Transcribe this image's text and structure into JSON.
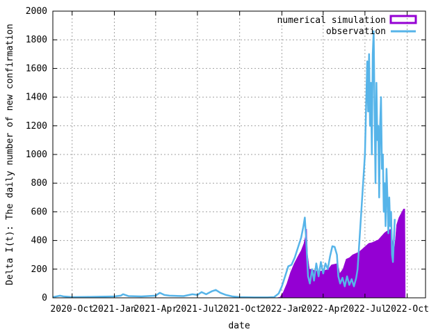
{
  "chart_data": {
    "type": "area",
    "title": "",
    "xlabel": "date",
    "ylabel": "Delta I(t): The daily number of new confirmation",
    "ylim": [
      0,
      2000
    ],
    "xlim": [
      "2020-08-20",
      "2022-11-10"
    ],
    "yticks": [
      0,
      200,
      400,
      600,
      800,
      1000,
      1200,
      1400,
      1600,
      1800,
      2000
    ],
    "xticks": [
      {
        "date": "2020-10-01",
        "label": "2020-Oct"
      },
      {
        "date": "2021-01-01",
        "label": "2021-Jan"
      },
      {
        "date": "2021-04-01",
        "label": "2021-Apr"
      },
      {
        "date": "2021-07-01",
        "label": "2021-Jul"
      },
      {
        "date": "2021-10-01",
        "label": "2021-Oct"
      },
      {
        "date": "2022-01-01",
        "label": "2022-Jan"
      },
      {
        "date": "2022-04-01",
        "label": "2022-Apr"
      },
      {
        "date": "2022-07-01",
        "label": "2022-Jul"
      },
      {
        "date": "2022-10-01",
        "label": "2022-Oct"
      }
    ],
    "grid": true,
    "legend_position": "top-right",
    "series": [
      {
        "name": "numerical simulation",
        "style": "filled bars",
        "color": "#9400d3",
        "points": [
          [
            "2020-08-20",
            0
          ],
          [
            "2021-12-20",
            0
          ],
          [
            "2021-12-28",
            5
          ],
          [
            "2022-01-04",
            40
          ],
          [
            "2022-01-12",
            100
          ],
          [
            "2022-01-20",
            180
          ],
          [
            "2022-01-28",
            240
          ],
          [
            "2022-02-05",
            290
          ],
          [
            "2022-02-12",
            330
          ],
          [
            "2022-02-18",
            380
          ],
          [
            "2022-02-22",
            440
          ],
          [
            "2022-02-24",
            480
          ],
          [
            "2022-02-26",
            300
          ],
          [
            "2022-03-02",
            200
          ],
          [
            "2022-03-08",
            195
          ],
          [
            "2022-03-15",
            190
          ],
          [
            "2022-03-22",
            185
          ],
          [
            "2022-03-29",
            188
          ],
          [
            "2022-04-05",
            192
          ],
          [
            "2022-04-12",
            200
          ],
          [
            "2022-04-19",
            230
          ],
          [
            "2022-04-26",
            235
          ],
          [
            "2022-05-03",
            240
          ],
          [
            "2022-05-07",
            170
          ],
          [
            "2022-05-14",
            200
          ],
          [
            "2022-05-21",
            270
          ],
          [
            "2022-05-28",
            280
          ],
          [
            "2022-06-04",
            300
          ],
          [
            "2022-06-11",
            310
          ],
          [
            "2022-06-18",
            320
          ],
          [
            "2022-06-25",
            340
          ],
          [
            "2022-07-02",
            360
          ],
          [
            "2022-07-09",
            380
          ],
          [
            "2022-07-16",
            385
          ],
          [
            "2022-07-23",
            395
          ],
          [
            "2022-07-30",
            405
          ],
          [
            "2022-08-06",
            430
          ],
          [
            "2022-08-13",
            455
          ],
          [
            "2022-08-20",
            470
          ],
          [
            "2022-08-27",
            480
          ],
          [
            "2022-09-01",
            350
          ],
          [
            "2022-09-04",
            360
          ],
          [
            "2022-09-08",
            510
          ],
          [
            "2022-09-13",
            560
          ],
          [
            "2022-09-18",
            590
          ],
          [
            "2022-09-23",
            620
          ],
          [
            "2022-09-26",
            620
          ],
          [
            "2022-09-27",
            0
          ]
        ]
      },
      {
        "name": "observation",
        "style": "line",
        "color": "#56b4e9",
        "points": [
          [
            "2020-08-20",
            5
          ],
          [
            "2020-08-28",
            10
          ],
          [
            "2020-09-05",
            15
          ],
          [
            "2020-09-12",
            10
          ],
          [
            "2020-09-20",
            8
          ],
          [
            "2020-10-01",
            5
          ],
          [
            "2020-11-01",
            6
          ],
          [
            "2020-12-01",
            8
          ],
          [
            "2021-01-01",
            10
          ],
          [
            "2021-01-15",
            15
          ],
          [
            "2021-01-20",
            25
          ],
          [
            "2021-02-01",
            12
          ],
          [
            "2021-03-01",
            10
          ],
          [
            "2021-04-01",
            15
          ],
          [
            "2021-04-10",
            35
          ],
          [
            "2021-04-20",
            20
          ],
          [
            "2021-05-01",
            15
          ],
          [
            "2021-06-01",
            12
          ],
          [
            "2021-06-20",
            25
          ],
          [
            "2021-07-01",
            20
          ],
          [
            "2021-07-10",
            40
          ],
          [
            "2021-07-20",
            25
          ],
          [
            "2021-08-01",
            45
          ],
          [
            "2021-08-10",
            55
          ],
          [
            "2021-08-20",
            35
          ],
          [
            "2021-09-01",
            20
          ],
          [
            "2021-09-15",
            10
          ],
          [
            "2021-10-01",
            5
          ],
          [
            "2021-11-01",
            3
          ],
          [
            "2021-12-01",
            3
          ],
          [
            "2021-12-15",
            5
          ],
          [
            "2021-12-25",
            30
          ],
          [
            "2022-01-01",
            80
          ],
          [
            "2022-01-08",
            150
          ],
          [
            "2022-01-15",
            220
          ],
          [
            "2022-01-22",
            230
          ],
          [
            "2022-01-29",
            280
          ],
          [
            "2022-02-05",
            350
          ],
          [
            "2022-02-12",
            420
          ],
          [
            "2022-02-17",
            500
          ],
          [
            "2022-02-20",
            560
          ],
          [
            "2022-02-23",
            400
          ],
          [
            "2022-02-27",
            150
          ],
          [
            "2022-03-03",
            100
          ],
          [
            "2022-03-08",
            200
          ],
          [
            "2022-03-12",
            120
          ],
          [
            "2022-03-17",
            240
          ],
          [
            "2022-03-22",
            150
          ],
          [
            "2022-03-27",
            250
          ],
          [
            "2022-04-01",
            170
          ],
          [
            "2022-04-06",
            240
          ],
          [
            "2022-04-11",
            200
          ],
          [
            "2022-04-16",
            290
          ],
          [
            "2022-04-21",
            360
          ],
          [
            "2022-04-26",
            355
          ],
          [
            "2022-05-01",
            300
          ],
          [
            "2022-05-04",
            150
          ],
          [
            "2022-05-08",
            100
          ],
          [
            "2022-05-13",
            140
          ],
          [
            "2022-05-18",
            80
          ],
          [
            "2022-05-23",
            150
          ],
          [
            "2022-05-28",
            90
          ],
          [
            "2022-06-02",
            130
          ],
          [
            "2022-06-07",
            80
          ],
          [
            "2022-06-12",
            140
          ],
          [
            "2022-06-15",
            200
          ],
          [
            "2022-06-19",
            400
          ],
          [
            "2022-06-23",
            600
          ],
          [
            "2022-06-27",
            800
          ],
          [
            "2022-07-01",
            1000
          ],
          [
            "2022-07-04",
            1400
          ],
          [
            "2022-07-06",
            1650
          ],
          [
            "2022-07-08",
            1300
          ],
          [
            "2022-07-10",
            1700
          ],
          [
            "2022-07-12",
            1200
          ],
          [
            "2022-07-14",
            1500
          ],
          [
            "2022-07-16",
            1000
          ],
          [
            "2022-07-18",
            1700
          ],
          [
            "2022-07-20",
            1860
          ],
          [
            "2022-07-22",
            1300
          ],
          [
            "2022-07-24",
            800
          ],
          [
            "2022-07-26",
            1500
          ],
          [
            "2022-07-28",
            1100
          ],
          [
            "2022-07-30",
            1200
          ],
          [
            "2022-08-01",
            700
          ],
          [
            "2022-08-03",
            1200
          ],
          [
            "2022-08-05",
            1400
          ],
          [
            "2022-08-07",
            900
          ],
          [
            "2022-08-09",
            1000
          ],
          [
            "2022-08-11",
            600
          ],
          [
            "2022-08-13",
            800
          ],
          [
            "2022-08-15",
            500
          ],
          [
            "2022-08-17",
            900
          ],
          [
            "2022-08-19",
            700
          ],
          [
            "2022-08-21",
            450
          ],
          [
            "2022-08-23",
            700
          ],
          [
            "2022-08-25",
            500
          ],
          [
            "2022-08-27",
            600
          ],
          [
            "2022-08-29",
            300
          ],
          [
            "2022-08-31",
            250
          ],
          [
            "2022-09-02",
            400
          ],
          [
            "2022-09-04",
            550
          ]
        ]
      }
    ]
  }
}
